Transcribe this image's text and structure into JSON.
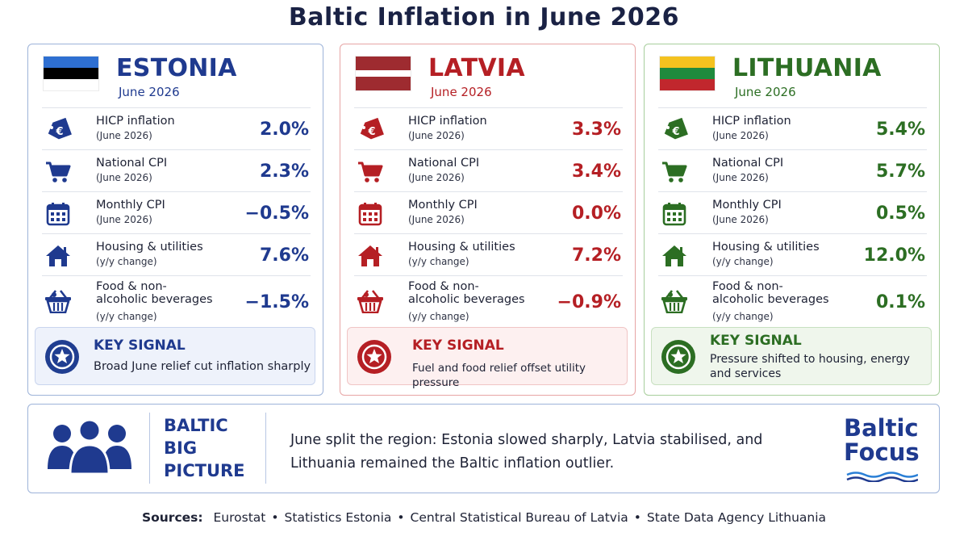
{
  "title": "Baltic Inflation in June 2026",
  "colors": {
    "estonia": "#1f3a8f",
    "latvia": "#b51f24",
    "lithuania": "#2c6e23"
  },
  "countries": [
    {
      "name": "ESTONIA",
      "month": "June 2026",
      "flag": [
        "#2e6fd1",
        "#000000",
        "#ffffff"
      ],
      "rows": [
        {
          "icon": "euro-tag-icon",
          "label": "HICP inflation",
          "sub": "(June 2026)",
          "value": "2.0%"
        },
        {
          "icon": "shopping-cart-icon",
          "label": "National CPI",
          "sub": "(June 2026)",
          "value": "2.3%"
        },
        {
          "icon": "calendar-icon",
          "label": "Monthly CPI",
          "sub": "(June 2026)",
          "value": "−0.5%"
        },
        {
          "icon": "house-icon",
          "label": "Housing & utilities",
          "sub": "(y/y change)",
          "value": "7.6%"
        },
        {
          "icon": "basket-icon",
          "label": "Food & non-alcoholic beverages",
          "sub": "(y/y change)",
          "value": "−1.5%"
        }
      ],
      "signal_title": "KEY SIGNAL",
      "signal_text": "Broad June relief cut inflation sharply"
    },
    {
      "name": "LATVIA",
      "month": "June 2026",
      "flag": [
        "#9e2b30",
        "#ffffff",
        "#9e2b30"
      ],
      "rows": [
        {
          "icon": "euro-tag-icon",
          "label": "HICP inflation",
          "sub": "(June 2026)",
          "value": "3.3%"
        },
        {
          "icon": "shopping-cart-icon",
          "label": "National CPI",
          "sub": "(June 2026)",
          "value": "3.4%"
        },
        {
          "icon": "calendar-icon",
          "label": "Monthly CPI",
          "sub": "(June 2026)",
          "value": "0.0%"
        },
        {
          "icon": "house-icon",
          "label": "Housing & utilities",
          "sub": "(y/y change)",
          "value": "7.2%"
        },
        {
          "icon": "basket-icon",
          "label": "Food & non-alcoholic beverages",
          "sub": "(y/y change)",
          "value": "−0.9%"
        }
      ],
      "signal_title": "KEY SIGNAL",
      "signal_text": "Fuel and food relief offset utility pressure"
    },
    {
      "name": "LITHUANIA",
      "month": "June 2026",
      "flag": [
        "#f4c21f",
        "#1f8a3d",
        "#c1272d"
      ],
      "rows": [
        {
          "icon": "euro-tag-icon",
          "label": "HICP inflation",
          "sub": "(June 2026)",
          "value": "5.4%"
        },
        {
          "icon": "shopping-cart-icon",
          "label": "National CPI",
          "sub": "(June 2026)",
          "value": "5.7%"
        },
        {
          "icon": "calendar-icon",
          "label": "Monthly CPI",
          "sub": "(June 2026)",
          "value": "0.5%"
        },
        {
          "icon": "house-icon",
          "label": "Housing & utilities",
          "sub": "(y/y change)",
          "value": "12.0%"
        },
        {
          "icon": "basket-icon",
          "label": "Food & non-alcoholic beverages",
          "sub": "(y/y change)",
          "value": "0.1%"
        }
      ],
      "signal_title": "KEY SIGNAL",
      "signal_text": "Pressure shifted to housing, energy and services"
    }
  ],
  "big_picture": {
    "title": "BALTIC BIG PICTURE",
    "text": "June split the region: Estonia slowed sharply, Latvia stabilised, and Lithuania remained the Baltic inflation outlier.",
    "icon": "people-group-icon"
  },
  "brand": "Baltic Focus",
  "sources": {
    "label": "Sources:",
    "items": [
      "Eurostat",
      "Statistics Estonia",
      "Central Statistical Bureau of Latvia",
      "State Data Agency Lithuania"
    ]
  }
}
